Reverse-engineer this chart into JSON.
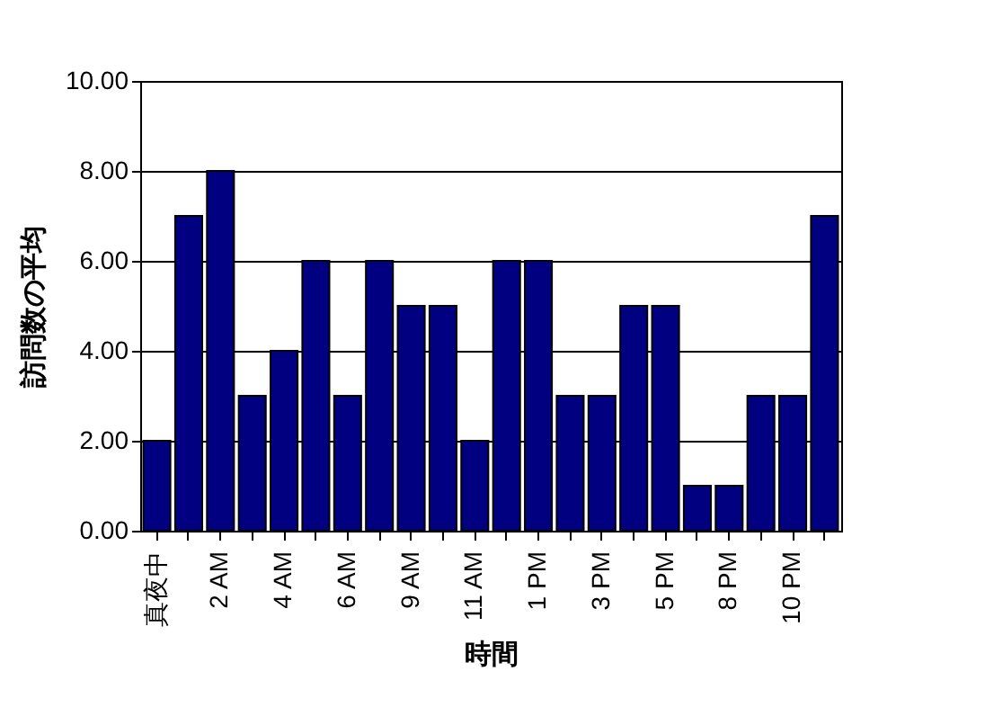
{
  "chart_data": {
    "type": "bar",
    "xlabel": "時間",
    "ylabel": "訪問数の平均",
    "categories": [
      "真夜中",
      null,
      "2 AM",
      null,
      "4 AM",
      null,
      "6 AM",
      null,
      "9 AM",
      null,
      "11 AM",
      null,
      "1 PM",
      null,
      "3 PM",
      null,
      "5 PM",
      null,
      "8 PM",
      null,
      "10 PM",
      null
    ],
    "values": [
      2,
      7,
      8,
      3,
      4,
      6,
      3,
      6,
      5,
      5,
      2,
      6,
      6,
      3,
      3,
      5,
      5,
      1,
      1,
      3,
      3,
      7
    ],
    "color": "#000080",
    "ylim": [
      0,
      10
    ],
    "yticks": [
      {
        "value": 0,
        "label": "0.00"
      },
      {
        "value": 2,
        "label": "2.00"
      },
      {
        "value": 4,
        "label": "4.00"
      },
      {
        "value": 6,
        "label": "6.00"
      },
      {
        "value": 8,
        "label": "8.00"
      },
      {
        "value": 10,
        "label": "10.00"
      }
    ],
    "grid": "y"
  }
}
